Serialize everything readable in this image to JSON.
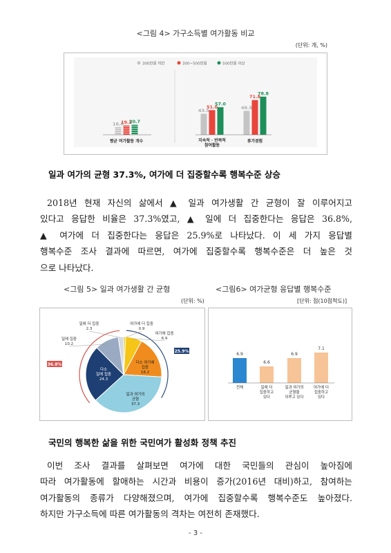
{
  "fig4": {
    "caption": "<그림 4> 가구소득별 여가활동 비교",
    "unit": "(단위: 개, %)",
    "legend": [
      "300만원 미만",
      "300~500만원",
      "500만원 이상"
    ],
    "colors": [
      "#c4c4c4",
      "#e8453c",
      "#1e8f5a"
    ],
    "chart_data": {
      "type": "bar",
      "series": [
        {
          "name": "300만원 미만",
          "values": [
            16.0,
            43.5,
            49.5
          ]
        },
        {
          "name": "300~500만원",
          "values": [
            19.2,
            51.0,
            71.8
          ]
        },
        {
          "name": "500만원 이상",
          "values": [
            20.7,
            57.0,
            78.8
          ]
        }
      ],
      "groups": [
        {
          "labels": [
            "평균 여가활동 개수"
          ],
          "series_values": [
            [
              16.0
            ],
            [
              19.2
            ],
            [
              20.7
            ]
          ],
          "value_labels": [
            [
              "16.0"
            ],
            [
              "19.2"
            ],
            [
              "20.7"
            ]
          ]
        },
        {
          "labels": [
            "지속적 · 반복적",
            "참여활동",
            "휴가경험"
          ],
          "series_values": [
            [
              43.5,
              49.5
            ],
            [
              51.0,
              71.8
            ],
            [
              57.0,
              78.8
            ]
          ],
          "value_labels": [
            [
              "43.5",
              "49.5"
            ],
            [
              "51.0",
              "71.8"
            ],
            [
              "57.0",
              "78.8"
            ]
          ]
        }
      ]
    }
  },
  "section1": {
    "heading": "일과 여가의 균형 37.3%, 여가에 더 집중할수록 행복수준 상승",
    "lines": [
      "2018년 현재 자신의 삶에서 ▲ 일과 여가생활 간 균형이 잘 이루어지고",
      "있다고 응답한 비율은 37.3%였고, ▲ 일에 더 집중한다는 응답은 36.8%,",
      "▲ 여가에 더 집중한다는 응답은 25.9%로 나타났다. 이 세 가지 응답별",
      "행복수준 조사 결과에 따르면, 여가에 집중할수록 행복수준은 더 높은 것",
      "으로 나타났다."
    ]
  },
  "fig5": {
    "caption": "<그림 5> 일과 여가생활 간 균형",
    "unit": "(단위: %)",
    "chart_data": {
      "type": "pie",
      "slices": [
        {
          "name": "여가에 더 집중",
          "value": 0.9,
          "color": "#f2cf1f"
        },
        {
          "name": "여가에 집중",
          "value": 6.9,
          "color": "#f5c518"
        },
        {
          "name": "다소 여가에 집중",
          "value": 18.2,
          "color": "#f08c1e"
        },
        {
          "name": "일과 여가의 균형",
          "value": 37.3,
          "color": "#92cfe0"
        },
        {
          "name": "다소 일에 집중",
          "value": 24.3,
          "color": "#1e3f73"
        },
        {
          "name": "일에 집중",
          "value": 10.2,
          "color": "#9aaac2"
        },
        {
          "name": "일에 더 집중",
          "value": 2.3,
          "color": "#d4d9e2"
        }
      ],
      "badges": [
        "36.8%",
        "25.9%"
      ],
      "labels": {
        "s0": [
          "여가에 더 집중",
          "0.9"
        ],
        "s1": [
          "여가에 집중",
          "6.9"
        ],
        "s2": [
          "다소 여가에",
          "집중",
          "18.2"
        ],
        "s3": [
          "일과 여가의",
          "균형",
          "37.3"
        ],
        "s4": [
          "다소",
          "일에 집중",
          "24.3"
        ],
        "s5": [
          "일에 집중",
          "10.2"
        ],
        "s6": [
          "일에 더 집중",
          "2.3"
        ]
      }
    }
  },
  "fig6": {
    "caption": "<그림6> 여가균형 응답별 행복수준",
    "unit": "[단위: 점(10점척도)]",
    "chart_data": {
      "type": "bar",
      "categories": [
        "전체",
        "일에 더 집중하고 있다",
        "일과 여가의 균형을 이루고 있다",
        "여가에 더 집중하고 있다"
      ],
      "values": [
        6.9,
        6.6,
        6.9,
        7.1
      ],
      "value_labels": [
        "6.9",
        "6.6",
        "6.9",
        "7.1"
      ],
      "category_lines": [
        [
          "전체"
        ],
        [
          "일에 더",
          "집중하고",
          "있다"
        ],
        [
          "일과 여가의",
          "균형을",
          "이루고 있다"
        ],
        [
          "여가에 더",
          "집중하고",
          "있다"
        ]
      ],
      "colors": [
        "#2b87cf",
        "#f6c497",
        "#f6c497",
        "#f6c497"
      ],
      "ylim": [
        6.0,
        7.5
      ]
    }
  },
  "section2": {
    "heading": "국민의 행복한 삶을 위한 국민여가 활성화 정책 추진",
    "lines": [
      "이번 조사 결과를 살펴보면 여가에 대한 국민들의 관심이 높아짐에",
      "따라 여가활동에 할애하는 시간과 비용이 증가(2016년 대비)하고, 참여하는",
      "여가활동의 종류가 다양해졌으며, 여가에 집중할수록 행복수준도 높아졌다.",
      "하지만 가구소득에 따른 여가활동의 격차는 여전히 존재했다."
    ]
  },
  "page_number": "- 3 -"
}
